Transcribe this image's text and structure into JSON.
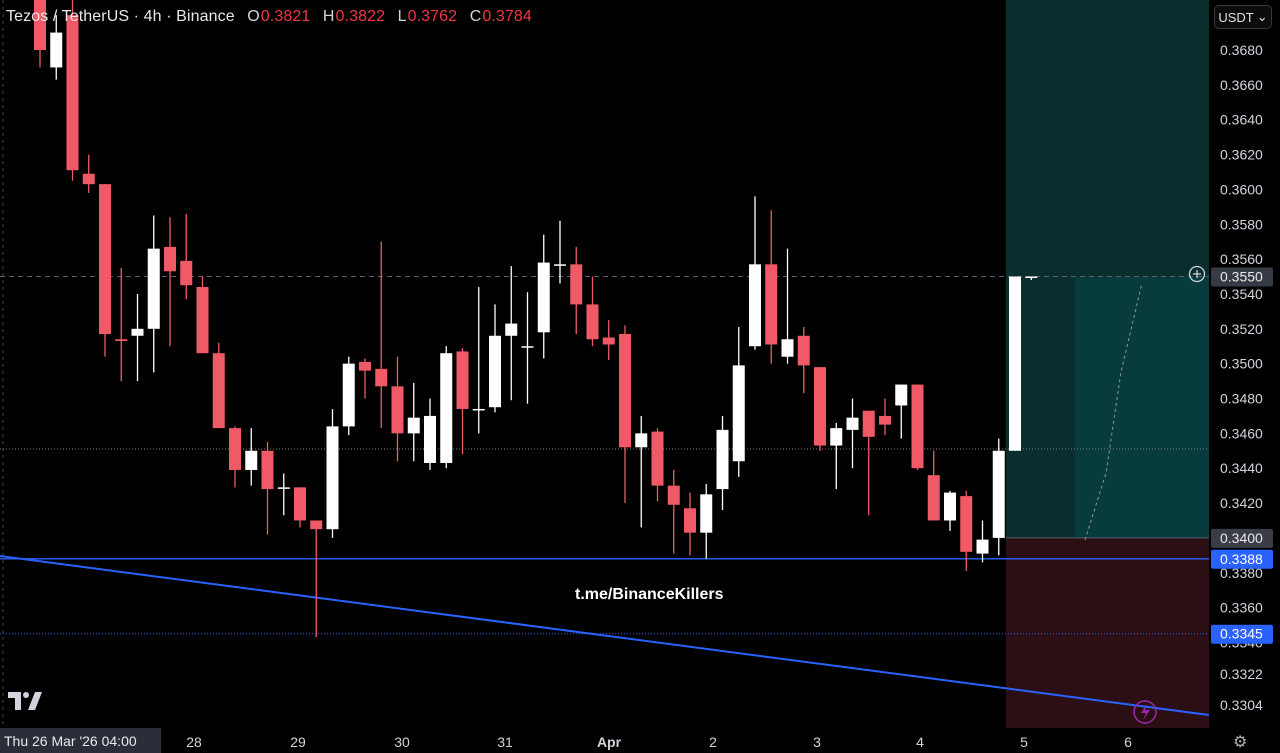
{
  "header": {
    "title": "Tezos / TetherUS · 4h · Binance",
    "open_label": "O",
    "open": "0.3821",
    "high_label": "H",
    "high": "0.3822",
    "low_label": "L",
    "low": "0.3762",
    "close_label": "C",
    "close": "0.3784"
  },
  "currency_button": {
    "label": "USDT",
    "icon": "chevron-down-icon"
  },
  "watermark": "t.me/BinanceKillers",
  "crosshair_date": "Thu 26 Mar '26   04:00",
  "colors": {
    "up": "#ffffff",
    "down": "#f05a67",
    "blue": "#2962ff",
    "profit": "#0a2e2e",
    "profit_active": "#073b3e",
    "loss": "#2b0f15",
    "background": "#000000"
  },
  "chart_data": {
    "type": "candlestick",
    "symbol": "XTZUSDT",
    "timeframe": "4h",
    "ylim": [
      0.33,
      0.37
    ],
    "y_ticks": [
      "0.3680",
      "0.3660",
      "0.3640",
      "0.3620",
      "0.3600",
      "0.3580",
      "0.3560",
      "0.3540",
      "0.3520",
      "0.3500",
      "0.3480",
      "0.3460",
      "0.3440",
      "0.3420",
      "0.3400",
      "0.3380",
      "0.3360",
      "0.3340",
      "0.3322",
      "0.3304"
    ],
    "x_ticks": [
      "28",
      "29",
      "30",
      "31",
      "Apr",
      "2",
      "3",
      "4",
      "5",
      "6"
    ],
    "price_labels": [
      {
        "value": "0.3550",
        "style": "crosshair"
      },
      {
        "value": "0.3400",
        "style": "position"
      },
      {
        "value": "0.3388",
        "style": "line"
      },
      {
        "value": "0.3345",
        "style": "line"
      }
    ],
    "candles": [
      {
        "o": 0.371,
        "h": 0.372,
        "l": 0.367,
        "c": 0.368
      },
      {
        "o": 0.367,
        "h": 0.37,
        "l": 0.3663,
        "c": 0.369
      },
      {
        "o": 0.37,
        "h": 0.372,
        "l": 0.3605,
        "c": 0.3611
      },
      {
        "o": 0.3609,
        "h": 0.362,
        "l": 0.3598,
        "c": 0.3603
      },
      {
        "o": 0.3603,
        "h": 0.3603,
        "l": 0.3504,
        "c": 0.3517
      },
      {
        "o": 0.3514,
        "h": 0.3555,
        "l": 0.349,
        "c": 0.3513
      },
      {
        "o": 0.3516,
        "h": 0.354,
        "l": 0.349,
        "c": 0.352
      },
      {
        "o": 0.352,
        "h": 0.3585,
        "l": 0.3495,
        "c": 0.3566
      },
      {
        "o": 0.3567,
        "h": 0.3584,
        "l": 0.351,
        "c": 0.3553
      },
      {
        "o": 0.3559,
        "h": 0.3586,
        "l": 0.3537,
        "c": 0.3545
      },
      {
        "o": 0.3544,
        "h": 0.355,
        "l": 0.3506,
        "c": 0.3506
      },
      {
        "o": 0.3506,
        "h": 0.3512,
        "l": 0.3463,
        "c": 0.3463
      },
      {
        "o": 0.3463,
        "h": 0.3464,
        "l": 0.3429,
        "c": 0.3439
      },
      {
        "o": 0.3439,
        "h": 0.3463,
        "l": 0.343,
        "c": 0.345
      },
      {
        "o": 0.345,
        "h": 0.3455,
        "l": 0.3402,
        "c": 0.3428
      },
      {
        "o": 0.3429,
        "h": 0.3437,
        "l": 0.3413,
        "c": 0.3429
      },
      {
        "o": 0.3429,
        "h": 0.3429,
        "l": 0.3406,
        "c": 0.341
      },
      {
        "o": 0.341,
        "h": 0.341,
        "l": 0.3343,
        "c": 0.3405
      },
      {
        "o": 0.3405,
        "h": 0.3474,
        "l": 0.34,
        "c": 0.3464
      },
      {
        "o": 0.3464,
        "h": 0.3504,
        "l": 0.3459,
        "c": 0.35
      },
      {
        "o": 0.3501,
        "h": 0.3503,
        "l": 0.348,
        "c": 0.3496
      },
      {
        "o": 0.3497,
        "h": 0.357,
        "l": 0.3463,
        "c": 0.3487
      },
      {
        "o": 0.3487,
        "h": 0.3504,
        "l": 0.3444,
        "c": 0.346
      },
      {
        "o": 0.346,
        "h": 0.3489,
        "l": 0.3444,
        "c": 0.3469
      },
      {
        "o": 0.3443,
        "h": 0.348,
        "l": 0.3439,
        "c": 0.347
      },
      {
        "o": 0.3443,
        "h": 0.351,
        "l": 0.344,
        "c": 0.3506
      },
      {
        "o": 0.3507,
        "h": 0.3509,
        "l": 0.3448,
        "c": 0.3474
      },
      {
        "o": 0.3474,
        "h": 0.3544,
        "l": 0.346,
        "c": 0.3474
      },
      {
        "o": 0.3475,
        "h": 0.3534,
        "l": 0.3472,
        "c": 0.3516
      },
      {
        "o": 0.3516,
        "h": 0.3556,
        "l": 0.3479,
        "c": 0.3523
      },
      {
        "o": 0.351,
        "h": 0.3541,
        "l": 0.3477,
        "c": 0.351
      },
      {
        "o": 0.3518,
        "h": 0.3574,
        "l": 0.3503,
        "c": 0.3558
      },
      {
        "o": 0.3557,
        "h": 0.3582,
        "l": 0.3546,
        "c": 0.3557
      },
      {
        "o": 0.3557,
        "h": 0.3567,
        "l": 0.3517,
        "c": 0.3534
      },
      {
        "o": 0.3534,
        "h": 0.355,
        "l": 0.351,
        "c": 0.3514
      },
      {
        "o": 0.3515,
        "h": 0.3525,
        "l": 0.3502,
        "c": 0.3511
      },
      {
        "o": 0.3517,
        "h": 0.3522,
        "l": 0.342,
        "c": 0.3452
      },
      {
        "o": 0.3452,
        "h": 0.347,
        "l": 0.3406,
        "c": 0.346
      },
      {
        "o": 0.3461,
        "h": 0.3463,
        "l": 0.3421,
        "c": 0.343
      },
      {
        "o": 0.343,
        "h": 0.3439,
        "l": 0.3391,
        "c": 0.3419
      },
      {
        "o": 0.3417,
        "h": 0.3426,
        "l": 0.339,
        "c": 0.3403
      },
      {
        "o": 0.3403,
        "h": 0.3431,
        "l": 0.3388,
        "c": 0.3425
      },
      {
        "o": 0.3428,
        "h": 0.347,
        "l": 0.3416,
        "c": 0.3462
      },
      {
        "o": 0.3444,
        "h": 0.3521,
        "l": 0.3435,
        "c": 0.3499
      },
      {
        "o": 0.351,
        "h": 0.3596,
        "l": 0.3508,
        "c": 0.3557
      },
      {
        "o": 0.3557,
        "h": 0.3588,
        "l": 0.35,
        "c": 0.3511
      },
      {
        "o": 0.3504,
        "h": 0.3566,
        "l": 0.35,
        "c": 0.3514
      },
      {
        "o": 0.3516,
        "h": 0.3521,
        "l": 0.3483,
        "c": 0.3499
      },
      {
        "o": 0.3498,
        "h": 0.3498,
        "l": 0.345,
        "c": 0.3453
      },
      {
        "o": 0.3453,
        "h": 0.3466,
        "l": 0.3428,
        "c": 0.3463
      },
      {
        "o": 0.3462,
        "h": 0.348,
        "l": 0.344,
        "c": 0.3469
      },
      {
        "o": 0.3473,
        "h": 0.347,
        "l": 0.3413,
        "c": 0.3458
      },
      {
        "o": 0.347,
        "h": 0.348,
        "l": 0.3459,
        "c": 0.3465
      },
      {
        "o": 0.3476,
        "h": 0.3488,
        "l": 0.3457,
        "c": 0.3488
      },
      {
        "o": 0.3488,
        "h": 0.3488,
        "l": 0.3439,
        "c": 0.344
      },
      {
        "o": 0.3436,
        "h": 0.345,
        "l": 0.3411,
        "c": 0.341
      },
      {
        "o": 0.341,
        "h": 0.3427,
        "l": 0.3404,
        "c": 0.3426
      },
      {
        "o": 0.3424,
        "h": 0.3427,
        "l": 0.3381,
        "c": 0.3392
      },
      {
        "o": 0.3391,
        "h": 0.341,
        "l": 0.3386,
        "c": 0.3399
      },
      {
        "o": 0.34,
        "h": 0.3457,
        "l": 0.339,
        "c": 0.345
      },
      {
        "o": 0.345,
        "h": 0.355,
        "l": 0.345,
        "c": 0.355
      },
      {
        "o": 0.355,
        "h": 0.355,
        "l": 0.3548,
        "c": 0.355
      }
    ],
    "horizontal_lines": [
      {
        "price": 0.355,
        "style": "dashed",
        "color": "#5a5e6a"
      },
      {
        "price": 0.3451,
        "style": "dotted",
        "color": "#7a7e8a"
      },
      {
        "price": 0.3388,
        "style": "solid",
        "color": "#2962ff"
      },
      {
        "price": 0.3345,
        "style": "dotted",
        "color": "#2962ff"
      }
    ],
    "trendline": {
      "from": {
        "bar": -10,
        "price": 0.3395
      },
      "to": {
        "bar": 70,
        "price": 0.3305
      },
      "color": "#2962ff"
    },
    "long_position": {
      "entry": 0.34,
      "target": 0.37,
      "stop": 0.33,
      "start_bar": 53
    }
  }
}
